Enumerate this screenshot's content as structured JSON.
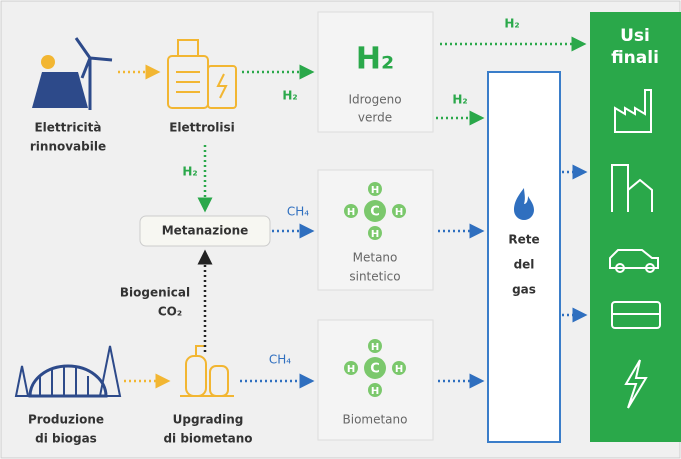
{
  "nodes": {
    "rinnovabile": {
      "lines": [
        "Elettricità",
        "rinnovabile"
      ]
    },
    "elettrolisi": {
      "label": "Elettrolisi"
    },
    "idrogeno": {
      "symbol": "H₂",
      "lines": [
        "Idrogeno",
        "verde"
      ]
    },
    "metanazione": {
      "label": "Metanazione"
    },
    "metano_sintetico": {
      "lines": [
        "Metano",
        "sintetico"
      ]
    },
    "biogas": {
      "lines": [
        "Produzione",
        "di biogas"
      ]
    },
    "upgrading": {
      "lines": [
        "Upgrading",
        "di biometano"
      ]
    },
    "biometano": {
      "label": "Biometano"
    },
    "rete": {
      "lines": [
        "Rete",
        "del",
        "gas"
      ]
    },
    "usi_finali": {
      "lines": [
        "Usi",
        "finali"
      ]
    }
  },
  "flow_labels": {
    "h2": "H₂",
    "ch4": "CH₄",
    "co2": [
      "Biogenical",
      "CO₂"
    ]
  },
  "molecule": {
    "center": "C",
    "outer": "H"
  }
}
